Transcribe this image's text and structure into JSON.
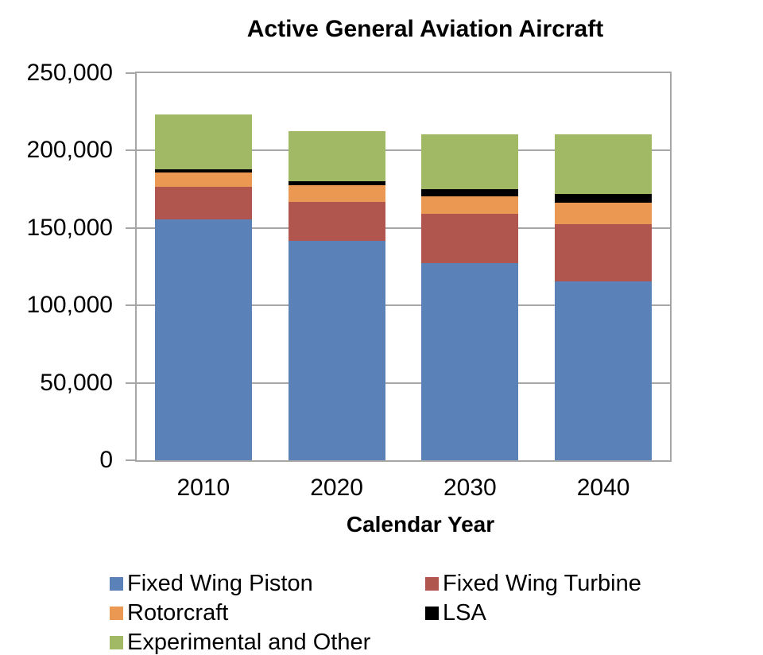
{
  "title": "Active General Aviation Aircraft",
  "x_axis_title": "Calendar Year",
  "chart_data": {
    "type": "bar",
    "stacked": true,
    "title": "Active General Aviation Aircraft",
    "xlabel": "Calendar Year",
    "ylabel": "",
    "categories": [
      "2010",
      "2020",
      "2030",
      "2040"
    ],
    "series": [
      {
        "name": "Fixed Wing Piston",
        "color": "#5b81b9",
        "values": [
          155500,
          141500,
          127500,
          115500
        ]
      },
      {
        "name": "Fixed Wing Turbine",
        "color": "#b1564f",
        "values": [
          21000,
          25500,
          31500,
          37000
        ]
      },
      {
        "name": "Rotorcraft",
        "color": "#eb9853",
        "values": [
          9500,
          10500,
          11500,
          14000
        ]
      },
      {
        "name": "LSA",
        "color": "#000000",
        "values": [
          2000,
          2500,
          4500,
          5500
        ]
      },
      {
        "name": "Experimental and Other",
        "color": "#a1b964",
        "values": [
          35500,
          32500,
          35500,
          38500
        ]
      }
    ],
    "totals": [
      223500,
      212500,
      210500,
      210500
    ],
    "ylim": [
      0,
      250000
    ],
    "ytick_step": 50000,
    "ytick_labels": [
      "0",
      "50,000",
      "100,000",
      "150,000",
      "200,000",
      "250,000"
    ],
    "grid": true,
    "gridline_color": "#a6a6a6",
    "legend_position": "bottom",
    "legend_columns": 2
  }
}
